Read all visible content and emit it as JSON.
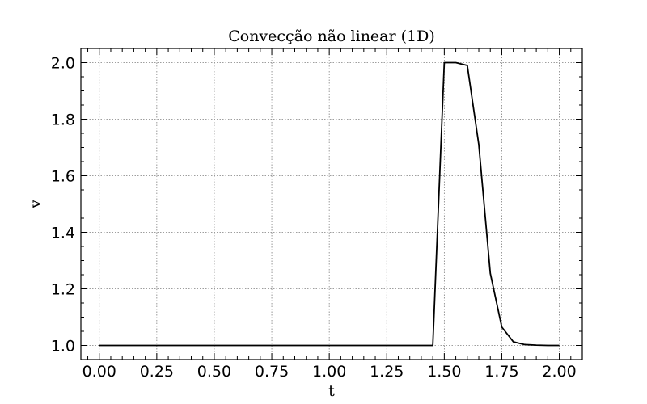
{
  "chart_data": {
    "type": "line",
    "title": "Convecção não linear (1D)",
    "xlabel": "t",
    "ylabel": "v",
    "xlim": [
      -0.08,
      2.1
    ],
    "ylim": [
      0.95,
      2.05
    ],
    "xticks": [
      0.0,
      0.25,
      0.5,
      0.75,
      1.0,
      1.25,
      1.5,
      1.75,
      2.0
    ],
    "xtick_labels": [
      "0.00",
      "0.25",
      "0.50",
      "0.75",
      "1.00",
      "1.25",
      "1.50",
      "1.75",
      "2.00"
    ],
    "yticks": [
      1.0,
      1.2,
      1.4,
      1.6,
      1.8,
      2.0
    ],
    "ytick_labels": [
      "1.0",
      "1.2",
      "1.4",
      "1.6",
      "1.8",
      "2.0"
    ],
    "grid": true,
    "series": [
      {
        "color": "#000000",
        "x": [
          0.0,
          0.05,
          0.1,
          0.15,
          0.2,
          0.25,
          0.3,
          0.35,
          0.4,
          0.45,
          0.5,
          0.55,
          0.6,
          0.65,
          0.7,
          0.75,
          0.8,
          0.85,
          0.9,
          0.95,
          1.0,
          1.05,
          1.1,
          1.15,
          1.2,
          1.25,
          1.3,
          1.35,
          1.4,
          1.45,
          1.5,
          1.55,
          1.6,
          1.65,
          1.7,
          1.75,
          1.8,
          1.85,
          1.9,
          1.95,
          2.0
        ],
        "y": [
          1.0,
          1.0,
          1.0,
          1.0,
          1.0,
          1.0,
          1.0,
          1.0,
          1.0,
          1.0,
          1.0,
          1.0,
          1.0,
          1.0,
          1.0,
          1.0,
          1.0,
          1.0,
          1.0,
          1.0,
          1.0,
          1.0,
          1.0,
          1.0,
          1.0,
          1.0,
          1.0,
          1.0,
          1.0,
          1.0,
          2.0,
          2.0,
          1.99,
          1.71,
          1.255,
          1.065,
          1.013,
          1.003,
          1.001,
          1.0,
          1.0
        ]
      }
    ]
  }
}
